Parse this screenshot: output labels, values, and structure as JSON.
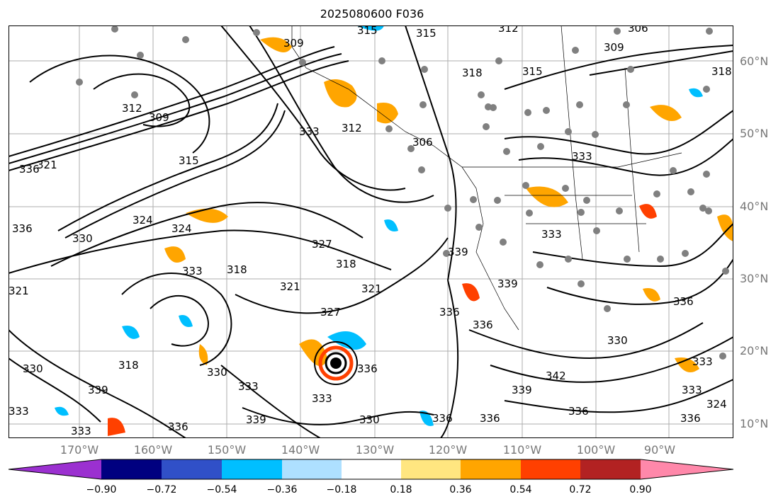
{
  "title": "2025080600 F036",
  "lat_labels": [
    "60°N",
    "50°N",
    "40°N",
    "30°N",
    "20°N",
    "10°N"
  ],
  "lon_labels": [
    "170°W",
    "160°W",
    "150°W",
    "140°W",
    "130°W",
    "120°W",
    "110°W",
    "100°W",
    "90°W"
  ],
  "colorbar": {
    "tick_labels": [
      "−0.90",
      "−0.72",
      "−0.54",
      "−0.36",
      "−0.18",
      "0.18",
      "0.36",
      "0.54",
      "0.72",
      "0.90"
    ],
    "colors": [
      "#9b30d0",
      "#000080",
      "#3050c8",
      "#00bfff",
      "#aee0ff",
      "#ffffff",
      "#ffe680",
      "#ffa500",
      "#ff4000",
      "#b22222",
      "#ff88aa"
    ]
  },
  "contour_labels": [
    "309",
    "315",
    "315",
    "312",
    "306",
    "309",
    "318",
    "315",
    "318",
    "312",
    "309",
    "315",
    "312",
    "333",
    "306",
    "321",
    "336",
    "336",
    "330",
    "324",
    "333",
    "324",
    "327",
    "318",
    "333",
    "321",
    "321",
    "318",
    "327",
    "321",
    "318",
    "336",
    "330",
    "339",
    "336",
    "333",
    "339",
    "339",
    "330",
    "336",
    "330",
    "336",
    "333",
    "339",
    "336",
    "333",
    "336",
    "336",
    "333",
    "342",
    "330",
    "336",
    "339",
    "333",
    "333",
    "324",
    "336",
    "333"
  ],
  "palette": {
    "shade_orange": "#ffa500",
    "shade_cyan": "#00bfff",
    "station_dots": "#808080"
  }
}
